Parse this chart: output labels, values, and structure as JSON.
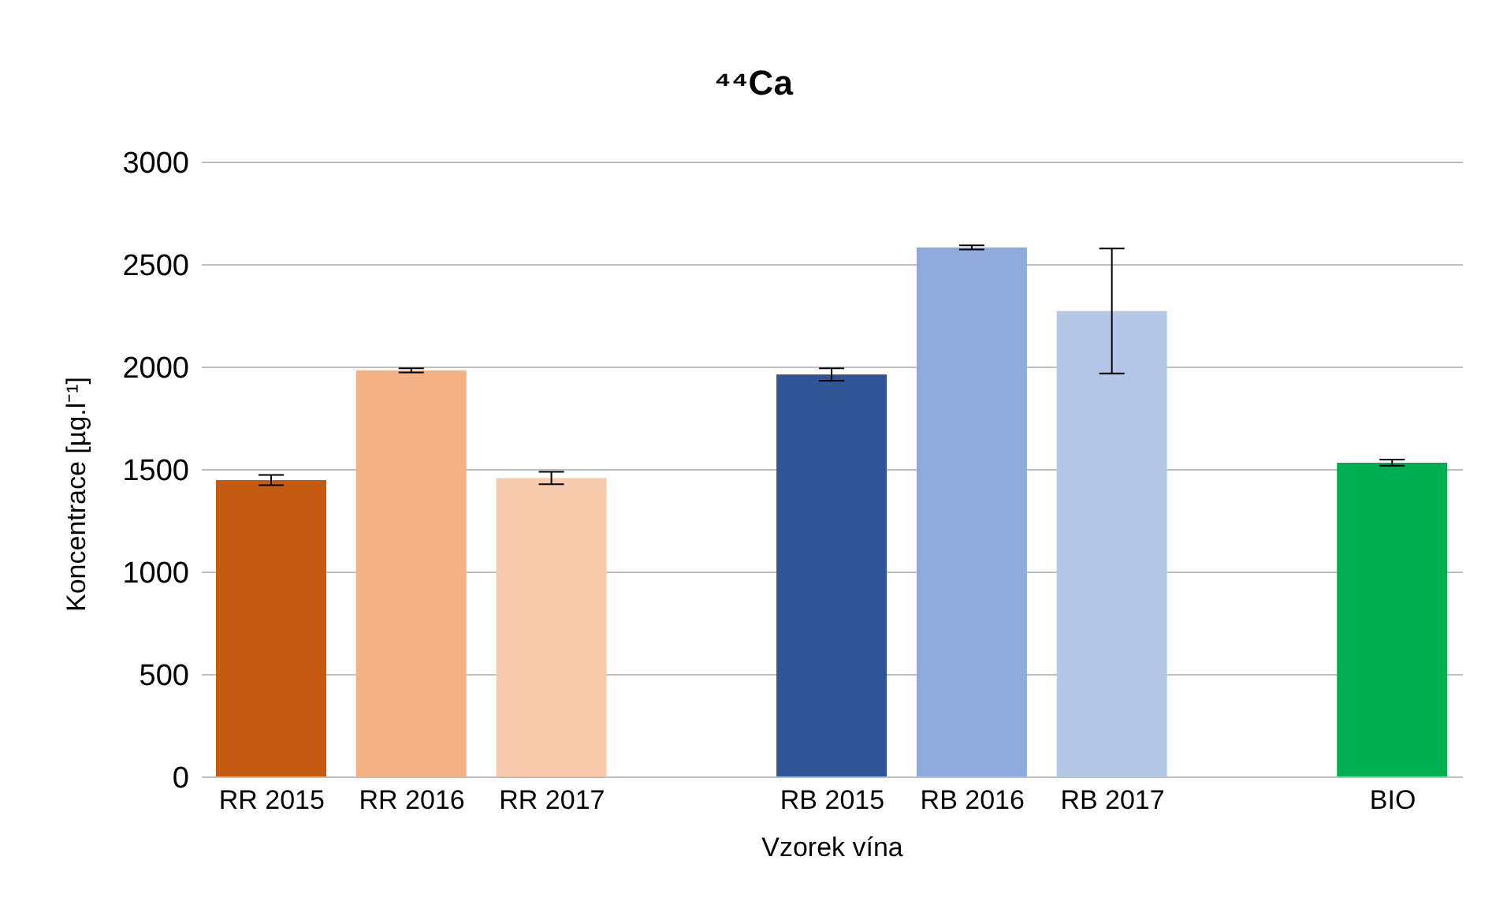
{
  "chart_data": {
    "type": "bar",
    "title": "⁴⁴Ca",
    "xlabel": "Vzorek vína",
    "ylabel": "Koncentrace [µg.l⁻¹]",
    "categories": [
      "RR 2015",
      "RR 2016",
      "RR 2017",
      null,
      "RB 2015",
      "RB 2016",
      "RB 2017",
      null,
      "BIO"
    ],
    "values": [
      1450,
      1985,
      1460,
      null,
      1965,
      2585,
      2275,
      null,
      1535
    ],
    "errors": [
      25,
      10,
      30,
      null,
      30,
      10,
      305,
      null,
      15
    ],
    "colors": [
      "#c55a11",
      "#f4b183",
      "#f8cbad",
      "#ffffff",
      "#2f5597",
      "#8faadc",
      "#b4c7e7",
      "#ffffff",
      "#00b050"
    ],
    "ylim": [
      0,
      3000
    ],
    "yticks": [
      0,
      500,
      1000,
      1500,
      2000,
      2500,
      3000
    ],
    "grid": "y",
    "legend": false
  }
}
